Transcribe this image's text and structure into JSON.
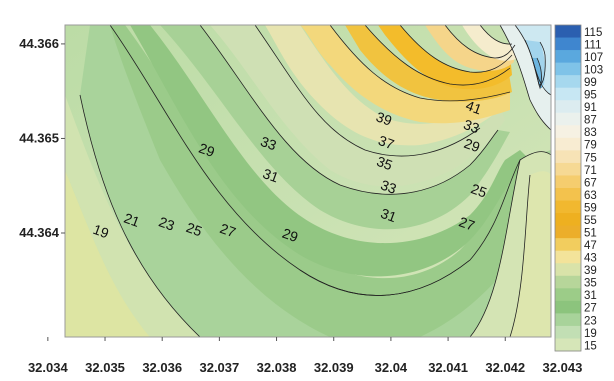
{
  "chart_data": {
    "type": "contour",
    "title": "",
    "xlabel": "",
    "ylabel": "",
    "x_ticks": [
      "32.034",
      "32.035",
      "32.036",
      "32.037",
      "32.038",
      "32.039",
      "32.04",
      "32.041",
      "32.042",
      "32.043"
    ],
    "x_tick_values": [
      32.034,
      32.035,
      32.036,
      32.037,
      32.038,
      32.039,
      32.04,
      32.041,
      32.042,
      32.043
    ],
    "y_ticks": [
      "44.366",
      "44.365",
      "44.364"
    ],
    "y_tick_values": [
      44.366,
      44.365,
      44.364
    ],
    "xlim": [
      32.0343,
      32.0428
    ],
    "ylim": [
      44.3629,
      44.3662
    ],
    "colorbar": {
      "levels": [
        115,
        111,
        107,
        103,
        99,
        95,
        91,
        87,
        83,
        79,
        75,
        71,
        67,
        63,
        59,
        55,
        51,
        47,
        43,
        39,
        35,
        31,
        27,
        23,
        19,
        15
      ],
      "labels": [
        "115",
        "111",
        "107",
        "103",
        "99",
        "95",
        "91",
        "87",
        "83",
        "79",
        "75",
        "71",
        "67",
        "63",
        "59",
        "55",
        "51",
        "47",
        "43",
        "39",
        "35",
        "31",
        "27",
        "23",
        "19",
        "15"
      ],
      "colors": [
        "#2b5fb0",
        "#3f86cf",
        "#5aa8de",
        "#7fc3e8",
        "#a6d8ee",
        "#c7e7f3",
        "#dcecf0",
        "#ebf1ed",
        "#f6f1e3",
        "#f8ecd2",
        "#f7e3b6",
        "#f6d994",
        "#f5cd6e",
        "#f3c24d",
        "#f1b82f",
        "#eeb020",
        "#ecae2a",
        "#f2cd5e",
        "#f3e39a",
        "#d9e3a9",
        "#b7d69a",
        "#9ccc88",
        "#8cc47d",
        "#a8d39a",
        "#c2dfb4",
        "#d6e6b8"
      ]
    },
    "contour_labels": [
      {
        "text": "19",
        "x": 32.0349,
        "y": 44.36397
      },
      {
        "text": "21",
        "x": 32.03544,
        "y": 44.36409
      },
      {
        "text": "23",
        "x": 32.03605,
        "y": 44.36405
      },
      {
        "text": "25",
        "x": 32.03653,
        "y": 44.36399
      },
      {
        "text": "27",
        "x": 32.03712,
        "y": 44.36398
      },
      {
        "text": "29",
        "x": 32.03821,
        "y": 44.36393
      },
      {
        "text": "29",
        "x": 32.03675,
        "y": 44.36483
      },
      {
        "text": "33",
        "x": 32.03783,
        "y": 44.3649
      },
      {
        "text": "31",
        "x": 32.03787,
        "y": 44.36456
      },
      {
        "text": "39",
        "x": 32.03985,
        "y": 44.36516
      },
      {
        "text": "37",
        "x": 32.03989,
        "y": 44.36491
      },
      {
        "text": "35",
        "x": 32.03986,
        "y": 44.36469
      },
      {
        "text": "33",
        "x": 32.03993,
        "y": 44.36444
      },
      {
        "text": "31",
        "x": 32.03993,
        "y": 44.36414
      },
      {
        "text": "27",
        "x": 32.0413,
        "y": 44.36405
      },
      {
        "text": "25",
        "x": 32.04151,
        "y": 44.3644
      },
      {
        "text": "29",
        "x": 32.04139,
        "y": 44.36488
      },
      {
        "text": "33",
        "x": 32.04138,
        "y": 44.36508
      },
      {
        "text": "41",
        "x": 32.04142,
        "y": 44.36528
      }
    ]
  }
}
